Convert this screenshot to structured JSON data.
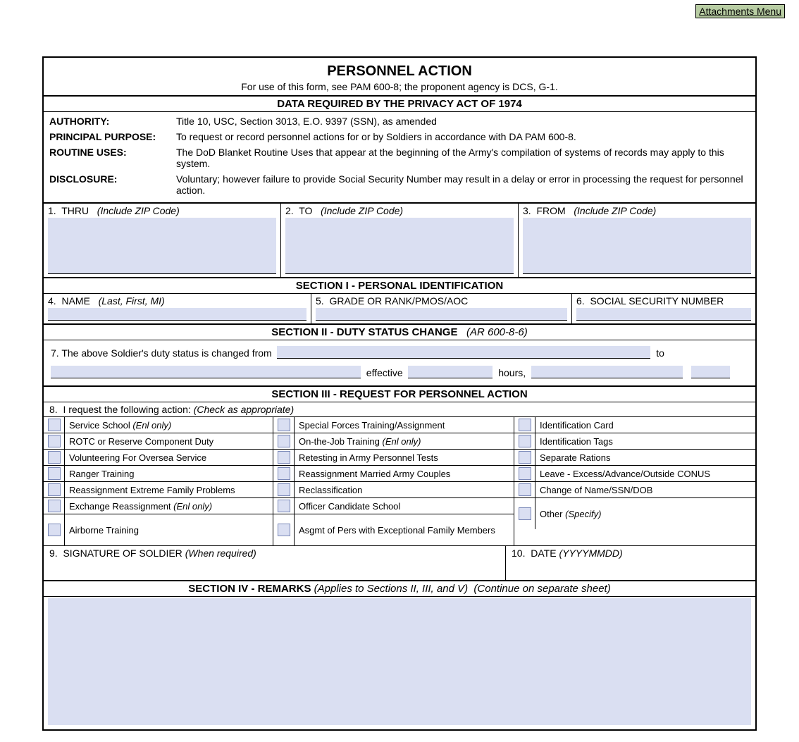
{
  "colors": {
    "field_bg": "#dadff2",
    "button_bg": "#b8cda3",
    "border": "#000000"
  },
  "attachments_btn": "Attachments Menu",
  "header": {
    "title": "PERSONNEL ACTION",
    "subtitle": "For use of this form, see PAM 600-8; the proponent agency is DCS, G-1."
  },
  "privacy": {
    "title": "DATA REQUIRED BY THE PRIVACY ACT OF 1974",
    "rows": [
      {
        "label": "AUTHORITY:",
        "text": "Title 10, USC, Section 3013, E.O. 9397 (SSN), as amended"
      },
      {
        "label": "PRINCIPAL PURPOSE:",
        "text": "To request or record personnel actions for or by Soldiers in accordance with DA PAM 600-8."
      },
      {
        "label": "ROUTINE USES:",
        "text": "The DoD Blanket Routine Uses that appear at the beginning of the Army's compilation of systems of records may apply to this system."
      },
      {
        "label": "DISCLOSURE:",
        "text": "Voluntary; however failure to provide Social Security Number may result in a delay or error in processing the request for personnel action."
      }
    ]
  },
  "block1": {
    "thru": {
      "num": "1.",
      "label": "THRU",
      "hint": "(Include ZIP Code)"
    },
    "to": {
      "num": "2.",
      "label": "TO",
      "hint": "(Include ZIP Code)"
    },
    "from": {
      "num": "3.",
      "label": "FROM",
      "hint": "(Include ZIP Code)"
    }
  },
  "section1": {
    "title": "SECTION I - PERSONAL IDENTIFICATION",
    "name": {
      "num": "4.",
      "label": "NAME",
      "hint": "(Last, First, MI)"
    },
    "grade": {
      "num": "5.",
      "label": "GRADE OR RANK/PMOS/AOC"
    },
    "ssn": {
      "num": "6.",
      "label": "SOCIAL SECURITY NUMBER"
    }
  },
  "section2": {
    "title": "SECTION II - DUTY STATUS CHANGE",
    "title_hint": "(AR 600-8-6)",
    "line_prefix": "7.  The above Soldier's duty status is changed from",
    "to": "to",
    "effective": "effective",
    "hours": "hours,"
  },
  "section3": {
    "title": "SECTION III - REQUEST FOR PERSONNEL ACTION",
    "line8": {
      "num": "8.",
      "text": "I request the following action:",
      "hint": "(Check as appropriate)"
    },
    "col1": [
      {
        "text": "Service School",
        "hint": "(Enl only)"
      },
      {
        "text": "ROTC or Reserve Component Duty"
      },
      {
        "text": "Volunteering For Oversea Service"
      },
      {
        "text": "Ranger Training"
      },
      {
        "text": "Reassignment Extreme Family Problems"
      },
      {
        "text": "Exchange Reassignment",
        "hint": "(Enl only)"
      },
      {
        "text": "Airborne Training"
      }
    ],
    "col2": [
      {
        "text": "Special Forces Training/Assignment"
      },
      {
        "text": "On-the-Job Training",
        "hint": "(Enl only)"
      },
      {
        "text": "Retesting in Army Personnel Tests"
      },
      {
        "text": "Reassignment Married Army Couples"
      },
      {
        "text": "Reclassification"
      },
      {
        "text": "Officer Candidate School"
      },
      {
        "text": "Asgmt of Pers with Exceptional Family Members"
      }
    ],
    "col3": [
      {
        "text": "Identification Card"
      },
      {
        "text": "Identification Tags"
      },
      {
        "text": "Separate Rations"
      },
      {
        "text": "Leave - Excess/Advance/Outside CONUS"
      },
      {
        "text": "Change of Name/SSN/DOB"
      },
      {
        "text": "Other",
        "hint": "(Specify)"
      }
    ],
    "sig": {
      "num": "9.",
      "label": "SIGNATURE OF SOLDIER",
      "hint": "(When required)"
    },
    "date": {
      "num": "10.",
      "label": "DATE",
      "hint": "(YYYYMMDD)"
    }
  },
  "section4": {
    "title": "SECTION IV - REMARKS",
    "hint1": "(Applies to Sections II, III, and V)",
    "hint2": "(Continue on separate sheet)"
  }
}
